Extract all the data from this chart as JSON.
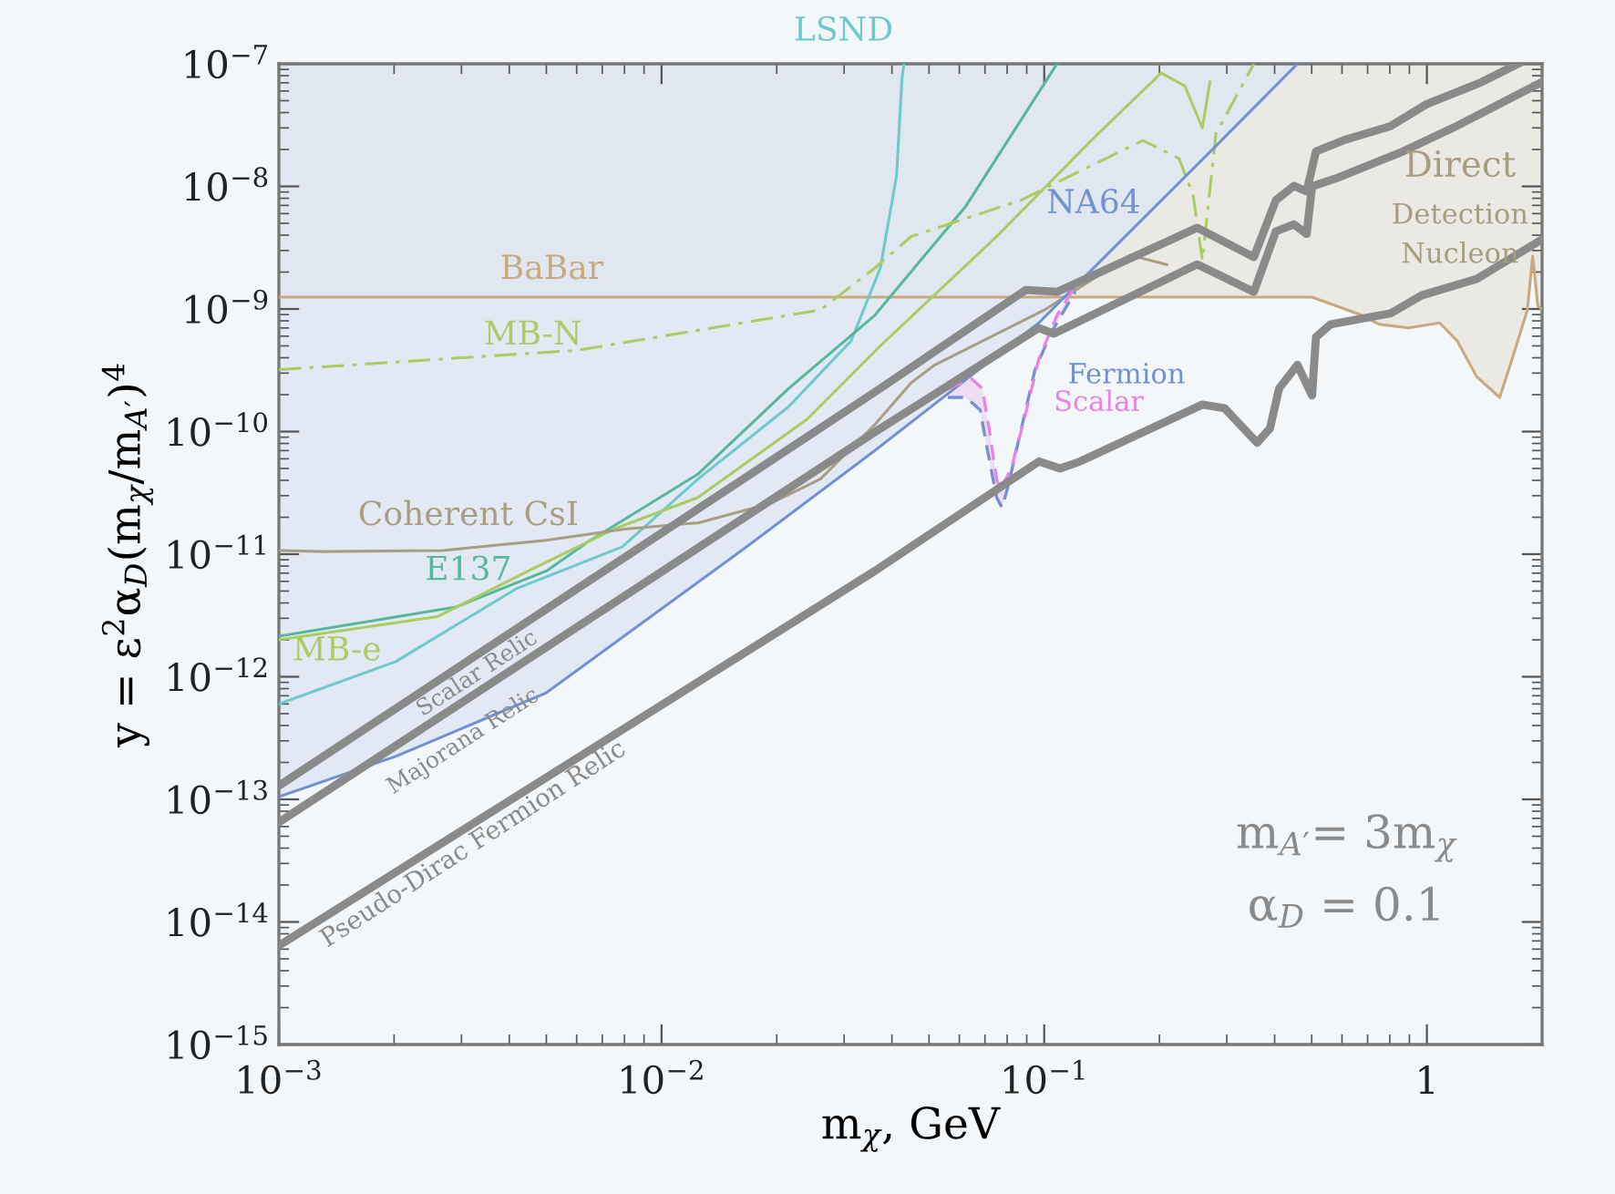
{
  "chart_data": {
    "type": "line",
    "xlabel": "m$_{χ}$, GeV",
    "ylabel": "y = ε$^{2}$α$_{D}$(m$_{χ}$/m$_{A′}$)$^{4}$",
    "log": "xy",
    "grid": false,
    "legend": false,
    "xlim": [
      0.001,
      2
    ],
    "ylim": [
      1e-15,
      1e-07
    ],
    "xticks": [
      {
        "value": 0.001,
        "label": "10$^{−3}$"
      },
      {
        "value": 0.01,
        "label": "10$^{−2}$"
      },
      {
        "value": 0.1,
        "label": "10$^{−1}$"
      },
      1
    ],
    "yticks": [
      {
        "value": 1e-15,
        "label": "10$^{−15}$"
      },
      {
        "value": 1e-14,
        "label": "10$^{−14}$"
      },
      {
        "value": 1e-13,
        "label": "10$^{−13}$"
      },
      {
        "value": 1e-12,
        "label": "10$^{−12}$"
      },
      {
        "value": 1e-11,
        "label": "10$^{−11}$"
      },
      {
        "value": 1e-10,
        "label": "10$^{−10}$"
      },
      {
        "value": 1e-09,
        "label": "10$^{−9}$"
      },
      {
        "value": 1e-08,
        "label": "10$^{−8}$"
      },
      {
        "value": 1e-07,
        "label": "10$^{−7}$"
      }
    ],
    "annotations": [
      "Direct",
      "Detection",
      "Nucleon",
      "m$_{A′}$= 3m$_{χ}$",
      "α$_{D}$ = 0.1"
    ],
    "series": [
      {
        "name": "BaBar",
        "color": "#c9a97e",
        "x": [
          0.001,
          0.0361,
          0.501,
          0.675,
          0.752,
          0.896,
          1.08,
          1.2,
          1.35,
          1.55,
          1.67,
          1.83,
          1.89,
          1.95,
          2.0
        ],
        "values": [
          1.25e-09,
          1.25e-09,
          1.25e-09,
          8.9e-10,
          7.5e-10,
          7e-10,
          7.7e-10,
          5.5e-10,
          2.8e-10,
          1.9e-10,
          3.9e-10,
          9.8e-10,
          2.7e-09,
          1.05e-09,
          1e-09
        ]
      },
      {
        "name": "LSND",
        "color": "#6ccaca",
        "x": [
          0.001,
          0.00202,
          0.00416,
          0.0079,
          0.01245,
          0.0215,
          0.0313,
          0.0373,
          0.0411,
          0.0425,
          0.043
        ],
        "values": [
          6e-13,
          1.33e-12,
          5.2e-12,
          1.15e-11,
          4.1e-11,
          1.6e-10,
          5.5e-10,
          2.16e-09,
          1.2e-08,
          7.6e-08,
          1e-07
        ]
      },
      {
        "name": "E137",
        "color": "#55b89c",
        "x": [
          0.001,
          0.0029,
          0.005,
          0.00645,
          0.01245,
          0.0215,
          0.0361,
          0.0624,
          0.108
        ],
        "values": [
          2.14e-12,
          3.7e-12,
          7.3e-12,
          1.27e-11,
          4.5e-11,
          2.25e-10,
          8.9e-10,
          6.9e-09,
          1e-07
        ]
      },
      {
        "name": "MB-e",
        "color": "#a9cd62",
        "x": [
          0.001,
          0.0026,
          0.00449,
          0.0075,
          0.01245,
          0.024,
          0.0373,
          0.0751,
          0.135,
          0.202,
          0.233,
          0.259,
          0.271
        ],
        "values": [
          2e-12,
          3.1e-12,
          7.3e-12,
          1.6e-11,
          2.9e-11,
          1.26e-10,
          5e-10,
          3.9e-09,
          2.5e-08,
          8.4e-08,
          6.6e-08,
          3e-08,
          7.1e-08
        ]
      },
      {
        "name": "MB-N",
        "color": "#a9cd62",
        "line_style": "dashdot",
        "x": [
          0.001,
          0.006,
          0.026,
          0.0361,
          0.0449,
          0.0867,
          0.181,
          0.225,
          0.245,
          0.259,
          0.281,
          0.353
        ],
        "values": [
          3.2e-10,
          4.6e-10,
          9.8e-10,
          2.16e-09,
          3.9e-09,
          7.7e-09,
          2.37e-08,
          1.69e-08,
          8.5e-09,
          2.5e-09,
          2.7e-08,
          1e-07
        ]
      },
      {
        "name": "Coherent CsI",
        "color": "#aa9e82",
        "x": [
          0.001,
          0.0013,
          0.00268,
          0.005,
          0.008,
          0.01245,
          0.0193,
          0.026,
          0.0361,
          0.0449,
          0.0518,
          0.1,
          0.168,
          0.209
        ],
        "values": [
          1.07e-11,
          1.05e-11,
          1.07e-11,
          1.3e-11,
          1.6e-11,
          1.8e-11,
          2.6e-11,
          4.1e-11,
          1.14e-10,
          2.5e-10,
          3.5e-10,
          9.8e-10,
          2.75e-09,
          2.3e-09
        ]
      },
      {
        "name": "NA64",
        "color": "#7391d2",
        "x": [
          0.001,
          0.00202,
          0.005,
          0.0167,
          0.0361,
          0.0968,
          0.1205,
          0.281,
          0.459
        ],
        "values": [
          1.05e-13,
          2.24e-13,
          7.4e-13,
          1.15e-11,
          7e-11,
          7.7e-10,
          1.53e-09,
          2.14e-08,
          1e-07
        ]
      },
      {
        "name": "Fermion",
        "color": "#7391d2",
        "line_style": "dashed",
        "x": [
          0.056,
          0.0624,
          0.068,
          0.0711,
          0.0751,
          0.0776,
          0.0803,
          0.0867,
          0.0946,
          0.1045,
          0.1205
        ],
        "values": [
          1.9e-10,
          1.9e-10,
          1.5e-10,
          7e-11,
          2.9e-11,
          2.4e-11,
          3.5e-11,
          9.9e-11,
          3.2e-10,
          6.5e-10,
          1.38e-09
        ]
      },
      {
        "name": "Scalar",
        "color": "#e784e4",
        "line_style": "dashed",
        "x": [
          0.056,
          0.0646,
          0.0689,
          0.072,
          0.0751,
          0.0769,
          0.082,
          0.0887,
          0.0968,
          0.108,
          0.1205
        ],
        "values": [
          2.25e-10,
          2.7e-10,
          2.25e-10,
          9.9e-11,
          4.1e-11,
          3.4e-11,
          5e-11,
          1.26e-10,
          3.9e-10,
          8.9e-10,
          1.53e-09
        ]
      },
      {
        "name": "Scalar Relic",
        "color": "#8a8a8a",
        "x": [
          0.001,
          0.0361,
          0.0895,
          0.108,
          0.251,
          0.353,
          0.403,
          0.449,
          0.485,
          0.513,
          0.604,
          0.803,
          1.0,
          1.39,
          1.73
        ],
        "values": [
          1.29e-13,
          2.1e-10,
          1.43e-09,
          1.38e-09,
          4.6e-09,
          2.65e-09,
          7.7e-09,
          1.01e-08,
          9.1e-09,
          1.93e-08,
          2.37e-08,
          3.1e-08,
          4.7e-08,
          7.1e-08,
          1e-07
        ]
      },
      {
        "name": "Majorana Relic",
        "color": "#8a8a8a",
        "x": [
          0.001,
          0.0361,
          0.0968,
          0.106,
          0.251,
          0.353,
          0.403,
          0.449,
          0.485,
          0.501,
          0.578,
          0.867,
          1.17,
          2.0
        ],
        "values": [
          6.5e-14,
          9.9e-11,
          7e-10,
          6.3e-10,
          2.31e-09,
          1.38e-09,
          4.3e-09,
          4.9e-09,
          4.1e-09,
          1e-08,
          1.16e-08,
          1.93e-08,
          3e-08,
          7.1e-08
        ]
      },
      {
        "name": "Pseudo-Dirac Fermion Relic",
        "color": "#8a8a8a",
        "x": [
          0.001,
          0.0361,
          0.0968,
          0.11,
          0.124,
          0.259,
          0.296,
          0.36,
          0.389,
          0.411,
          0.459,
          0.501,
          0.513,
          0.56,
          0.803,
          0.968,
          1.35,
          2.0
        ],
        "values": [
          6.4e-15,
          7.3e-12,
          5.7e-11,
          5e-11,
          5.7e-11,
          1.66e-10,
          1.55e-10,
          8.1e-11,
          1.06e-10,
          2.25e-10,
          3.5e-10,
          1.97e-10,
          5.9e-10,
          7.5e-10,
          9.2e-10,
          1.29e-09,
          1.76e-09,
          3.7e-09
        ]
      }
    ]
  }
}
